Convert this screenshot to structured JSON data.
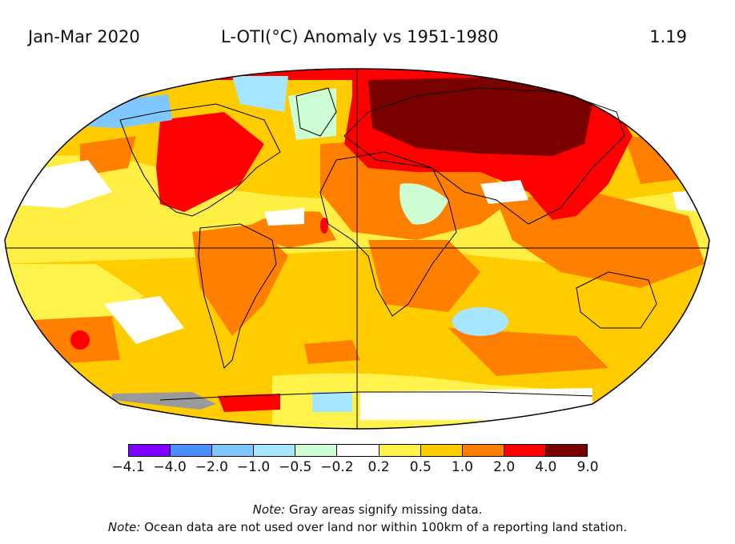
{
  "title": {
    "period": "Jan-Mar 2020",
    "main": "L-OTI(°C) Anomaly vs 1951-1980",
    "global_mean": "1.19"
  },
  "legend": {
    "colors": [
      "#7f00ff",
      "#4a8fff",
      "#7ec8ff",
      "#a6e6ff",
      "#cdfdd2",
      "#ffffff",
      "#fff24a",
      "#ffcc00",
      "#ff8000",
      "#ff0000",
      "#7a0000"
    ],
    "tick_labels": [
      "−4.1",
      "−4.0",
      "−2.0",
      "−1.0",
      "−0.5",
      "−0.2",
      "0.2",
      "0.5",
      "1.0",
      "2.0",
      "4.0",
      "9.0"
    ]
  },
  "notes": {
    "note1_label": "Note:",
    "note1_text": "Gray areas signify missing data.",
    "note2_label": "Note:",
    "note2_text": "Ocean data are not used over land nor within 100km of a reporting land station."
  }
}
